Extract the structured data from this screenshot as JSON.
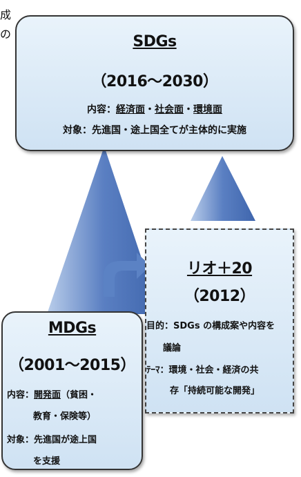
{
  "fragments": [
    "成",
    "の"
  ],
  "sdgs": {
    "title": "SDGs",
    "period": "（2016〜2030）",
    "content": [
      "内容：",
      "経済面",
      "・",
      "社会面",
      "・",
      "環境面"
    ],
    "target": "対象：先進国・途上国全てが主体的に実施"
  },
  "rio": {
    "title": "リオ＋20",
    "period": "（2012）",
    "purpose": [
      "目的：SDGs の構成案や内容を",
      "議論"
    ],
    "theme": [
      "ﾃｰﾏ：環境・社会・経済の共",
      "存「持続可能な開発」"
    ]
  },
  "mdgs": {
    "title": "MDGs",
    "period": "（2001〜2015）",
    "content": [
      "内容：",
      "開発面",
      "（貧困・",
      "教育・保険等）"
    ],
    "target": [
      "対象：先進国が途上国",
      "を支援"
    ]
  }
}
